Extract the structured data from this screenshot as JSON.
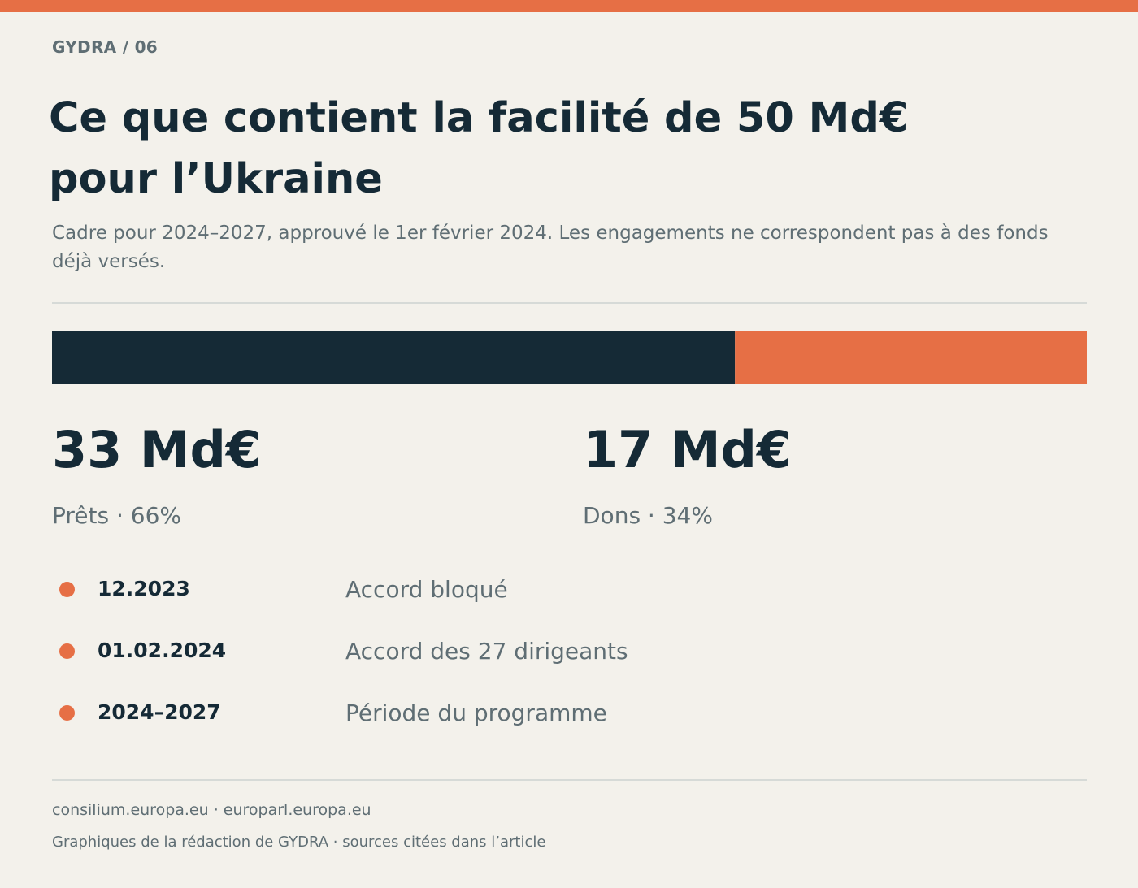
{
  "colors": {
    "accent": "#e66f45",
    "dark": "#152a36",
    "muted": "#5f6e74",
    "background": "#f3f1eb"
  },
  "header": {
    "kicker": "GYDRA / 06",
    "title": "Ce que contient la facilité de 50 Md€ pour l’Ukraine",
    "subtitle": "Cadre pour 2024–2027, approuvé le 1er février 2024. Les engagements ne correspondent pas à des fonds déjà versés."
  },
  "chart_data": {
    "type": "bar",
    "orientation": "horizontal-stacked",
    "title": "Ce que contient la facilité de 50 Md€ pour l’Ukraine",
    "total": 50,
    "unit": "Md€",
    "series": [
      {
        "name": "Prêts",
        "value": 33,
        "percent": 66,
        "color": "#152a36",
        "value_label": "33 Md€",
        "label": "Prêts · 66%"
      },
      {
        "name": "Dons",
        "value": 17,
        "percent": 34,
        "color": "#e66f45",
        "value_label": "17 Md€",
        "label": "Dons · 34%"
      }
    ]
  },
  "timeline": [
    {
      "date": "12.2023",
      "label": "Accord bloqué"
    },
    {
      "date": "01.02.2024",
      "label": "Accord des 27 dirigeants"
    },
    {
      "date": "2024–2027",
      "label": "Période du programme"
    }
  ],
  "footer": {
    "sources": "consilium.europa.eu · europarl.europa.eu",
    "credit": "Graphiques de la rédaction de GYDRA · sources citées dans l’article"
  }
}
